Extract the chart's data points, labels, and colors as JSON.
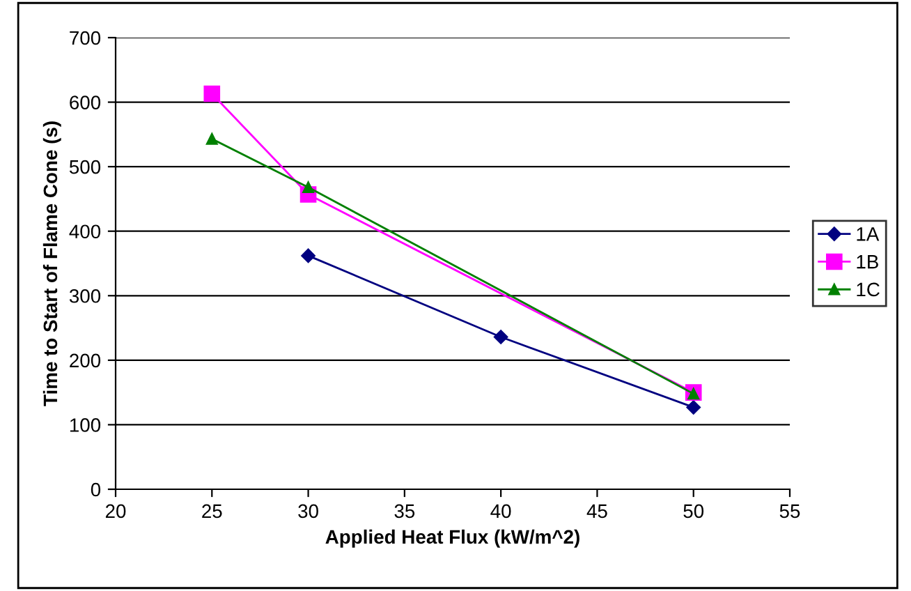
{
  "chart_data": {
    "type": "line",
    "xlabel": "Applied Heat Flux (kW/m^2)",
    "ylabel": "Time to Start of Flame Cone (s)",
    "xlim": [
      20,
      55
    ],
    "xticks": [
      20,
      25,
      30,
      35,
      40,
      45,
      50,
      55
    ],
    "ylim": [
      0,
      700
    ],
    "yticks": [
      0,
      100,
      200,
      300,
      400,
      500,
      600,
      700
    ],
    "grid": "y",
    "legend": "right",
    "line_style": "solid",
    "series": [
      {
        "name": "1A",
        "color": "#000080",
        "marker": "diamond",
        "x": [
          30,
          40,
          50
        ],
        "values": [
          362,
          236,
          127
        ]
      },
      {
        "name": "1B",
        "color": "#ff00ff",
        "marker": "square",
        "x": [
          25,
          30,
          50
        ],
        "values": [
          613,
          457,
          150
        ]
      },
      {
        "name": "1C",
        "color": "#008000",
        "marker": "triangle",
        "x": [
          25,
          30,
          50
        ],
        "values": [
          543,
          468,
          148
        ]
      }
    ]
  }
}
